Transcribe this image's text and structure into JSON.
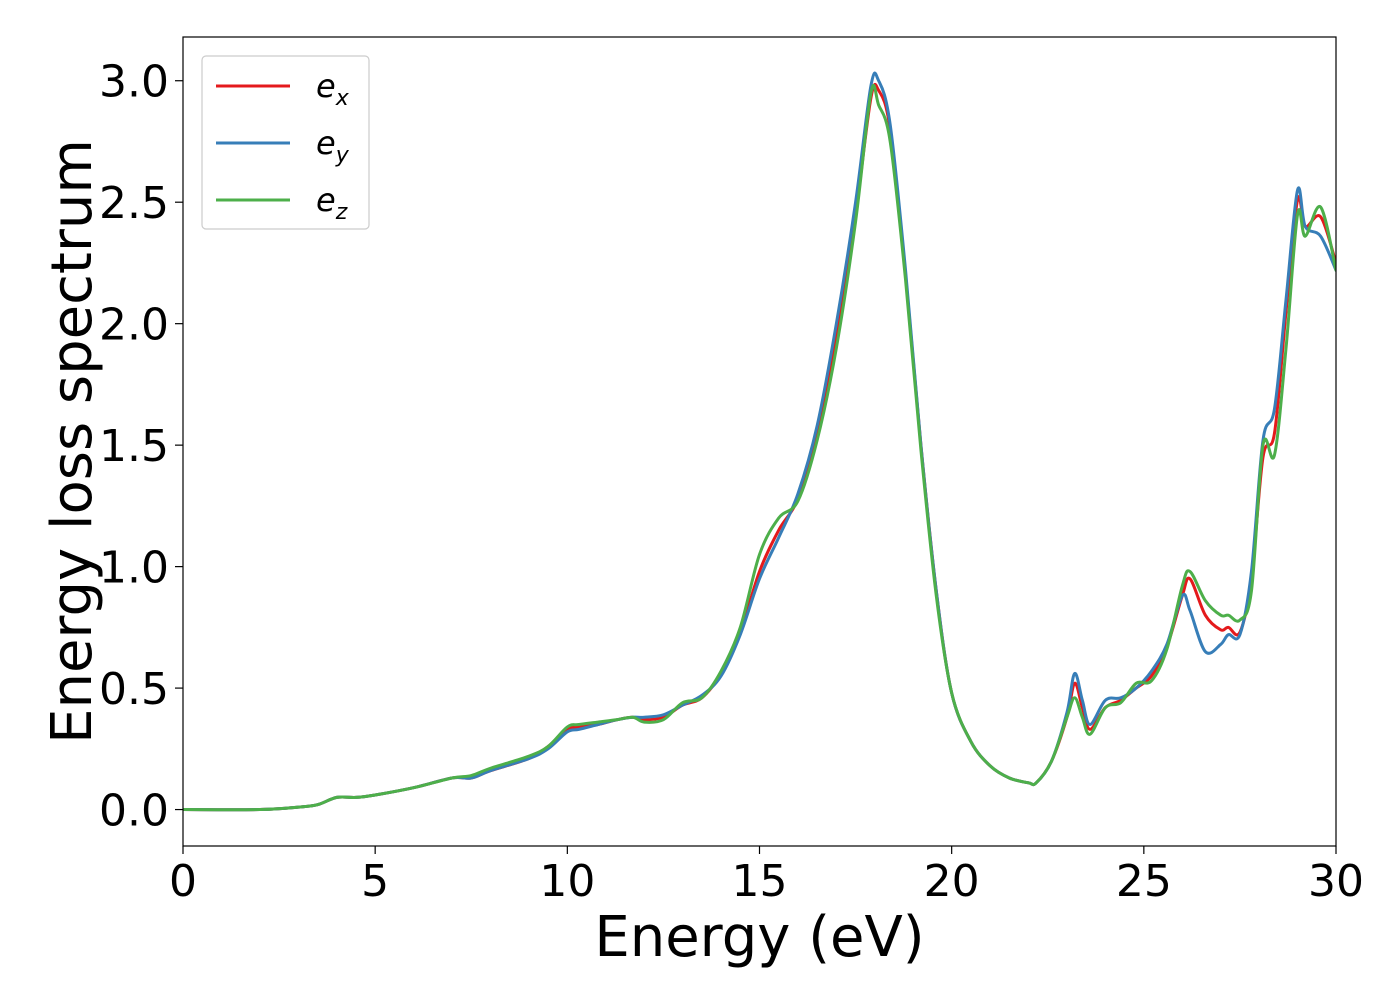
{
  "chart_data": {
    "type": "line",
    "title": "",
    "xlabel": "Energy (eV)",
    "ylabel": "Energy loss spectrum",
    "xlim": [
      0,
      30
    ],
    "ylim": [
      -0.15,
      3.18
    ],
    "xticks": [
      0,
      5,
      10,
      15,
      20,
      25,
      30
    ],
    "xtick_labels": [
      "0",
      "5",
      "10",
      "15",
      "20",
      "25",
      "30"
    ],
    "yticks": [
      0.0,
      0.5,
      1.0,
      1.5,
      2.0,
      2.5,
      3.0
    ],
    "ytick_labels": [
      "0.0",
      "0.5",
      "1.0",
      "1.5",
      "2.0",
      "2.5",
      "3.0"
    ],
    "grid": false,
    "legend_position": "upper-left",
    "series": [
      {
        "name": "e_x",
        "legend_base": "e",
        "legend_sub": "x",
        "color": "#e41a1c",
        "x": [
          0,
          2,
          3,
          3.5,
          4,
          4.5,
          5,
          6,
          7,
          7.5,
          8,
          9,
          9.5,
          10,
          10.3,
          10.8,
          11.3,
          11.7,
          12,
          12.5,
          13,
          13.5,
          14,
          14.5,
          15,
          15.5,
          16,
          16.5,
          17,
          17.5,
          17.9,
          18.1,
          18.4,
          18.8,
          19.2,
          19.6,
          20,
          20.5,
          21,
          21.5,
          22,
          22.2,
          22.6,
          23,
          23.2,
          23.4,
          23.6,
          24,
          24.4,
          24.8,
          25.2,
          25.6,
          26,
          26.2,
          26.6,
          27,
          27.2,
          27.5,
          27.8,
          28.1,
          28.4,
          28.7,
          29,
          29.2,
          29.6,
          30
        ],
        "y": [
          0,
          0,
          0.01,
          0.02,
          0.05,
          0.05,
          0.06,
          0.09,
          0.13,
          0.13,
          0.16,
          0.21,
          0.26,
          0.33,
          0.34,
          0.35,
          0.37,
          0.38,
          0.37,
          0.38,
          0.43,
          0.46,
          0.56,
          0.73,
          0.98,
          1.15,
          1.28,
          1.55,
          1.95,
          2.45,
          2.93,
          2.96,
          2.8,
          2.2,
          1.5,
          0.9,
          0.48,
          0.28,
          0.18,
          0.13,
          0.11,
          0.11,
          0.2,
          0.38,
          0.52,
          0.42,
          0.33,
          0.42,
          0.45,
          0.5,
          0.55,
          0.67,
          0.88,
          0.95,
          0.8,
          0.74,
          0.75,
          0.73,
          0.95,
          1.45,
          1.55,
          2.05,
          2.51,
          2.4,
          2.44,
          2.25
        ]
      },
      {
        "name": "e_y",
        "legend_base": "e",
        "legend_sub": "y",
        "color": "#377eb8",
        "x": [
          0,
          2,
          3,
          3.5,
          4,
          4.5,
          5,
          6,
          7,
          7.5,
          8,
          9,
          9.5,
          10,
          10.3,
          10.8,
          11.3,
          11.7,
          12,
          12.5,
          13,
          13.5,
          14,
          14.5,
          15,
          15.5,
          16,
          16.5,
          17,
          17.5,
          17.9,
          18.1,
          18.4,
          18.8,
          19.2,
          19.6,
          20,
          20.5,
          21,
          21.5,
          22,
          22.2,
          22.6,
          23,
          23.2,
          23.4,
          23.6,
          24,
          24.4,
          24.8,
          25.2,
          25.6,
          26,
          26.2,
          26.6,
          27,
          27.2,
          27.5,
          27.8,
          28.1,
          28.4,
          28.7,
          29,
          29.2,
          29.6,
          30
        ],
        "y": [
          0,
          0,
          0.01,
          0.02,
          0.05,
          0.05,
          0.06,
          0.09,
          0.13,
          0.13,
          0.16,
          0.21,
          0.25,
          0.32,
          0.33,
          0.35,
          0.37,
          0.38,
          0.38,
          0.39,
          0.43,
          0.47,
          0.55,
          0.72,
          0.95,
          1.12,
          1.3,
          1.58,
          2.0,
          2.5,
          2.98,
          3.0,
          2.82,
          2.22,
          1.5,
          0.9,
          0.48,
          0.28,
          0.18,
          0.13,
          0.11,
          0.11,
          0.2,
          0.4,
          0.56,
          0.45,
          0.35,
          0.45,
          0.46,
          0.5,
          0.57,
          0.68,
          0.88,
          0.82,
          0.65,
          0.68,
          0.72,
          0.72,
          0.98,
          1.52,
          1.65,
          2.1,
          2.55,
          2.4,
          2.36,
          2.22
        ]
      },
      {
        "name": "e_z",
        "legend_base": "e",
        "legend_sub": "z",
        "color": "#4daf4a",
        "x": [
          0,
          2,
          3,
          3.5,
          4,
          4.5,
          5,
          6,
          7,
          7.5,
          8,
          9,
          9.5,
          10,
          10.3,
          10.8,
          11.3,
          11.7,
          12,
          12.5,
          13,
          13.5,
          14,
          14.5,
          15,
          15.5,
          16,
          16.5,
          17,
          17.5,
          17.9,
          18.1,
          18.4,
          18.8,
          19.2,
          19.6,
          20,
          20.5,
          21,
          21.5,
          22,
          22.2,
          22.6,
          23,
          23.2,
          23.4,
          23.6,
          24,
          24.4,
          24.8,
          25.2,
          25.6,
          26,
          26.2,
          26.6,
          27,
          27.2,
          27.5,
          27.8,
          28.1,
          28.4,
          28.7,
          29,
          29.2,
          29.6,
          30
        ],
        "y": [
          0,
          0,
          0.01,
          0.02,
          0.05,
          0.05,
          0.06,
          0.09,
          0.13,
          0.14,
          0.17,
          0.22,
          0.26,
          0.34,
          0.35,
          0.36,
          0.37,
          0.38,
          0.36,
          0.37,
          0.44,
          0.46,
          0.57,
          0.75,
          1.05,
          1.2,
          1.27,
          1.52,
          1.9,
          2.42,
          2.95,
          2.9,
          2.75,
          2.18,
          1.48,
          0.88,
          0.48,
          0.28,
          0.18,
          0.13,
          0.11,
          0.11,
          0.2,
          0.38,
          0.46,
          0.38,
          0.31,
          0.42,
          0.44,
          0.52,
          0.53,
          0.66,
          0.92,
          0.98,
          0.86,
          0.8,
          0.8,
          0.78,
          0.9,
          1.5,
          1.46,
          1.9,
          2.45,
          2.36,
          2.48,
          2.22
        ]
      }
    ]
  }
}
